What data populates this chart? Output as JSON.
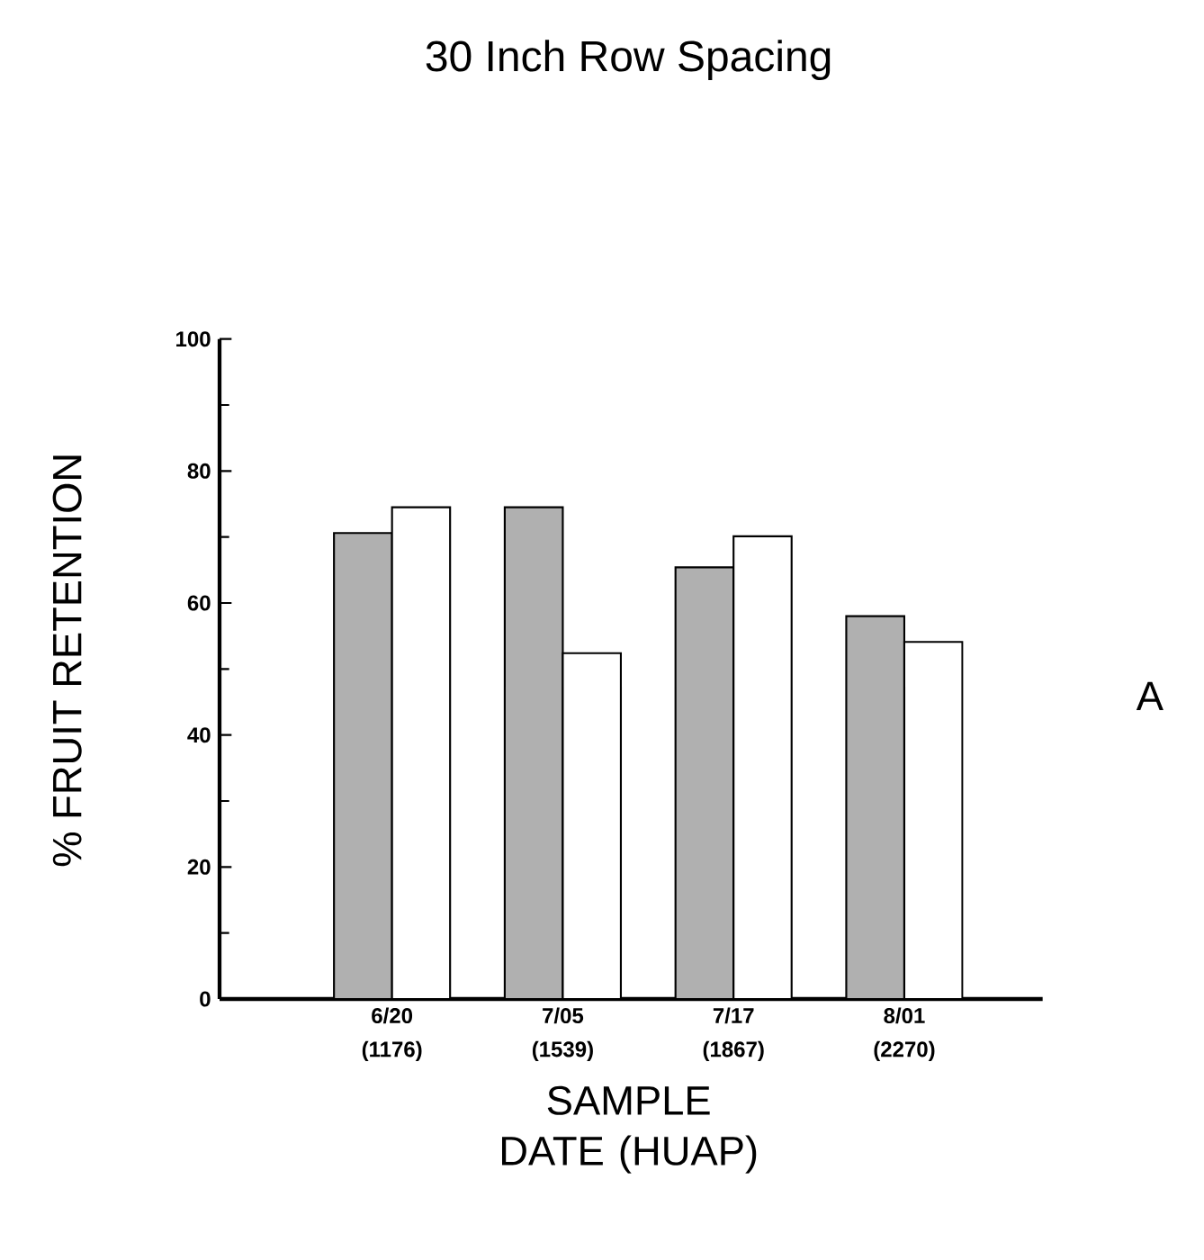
{
  "chart_data": {
    "type": "bar",
    "title": "30 Inch Row Spacing",
    "xlabel": "SAMPLE DATE (HUAP)",
    "ylabel": "% FRUIT RETENTION",
    "categories": [
      "6/20 (1176)",
      "7/05 (1539)",
      "7/17 (1867)",
      "8/01 (2270)"
    ],
    "series": [
      {
        "color": "#b0b0b0",
        "values": [
          70.6,
          74.5,
          65.4,
          58.0
        ]
      },
      {
        "color": "#ffffff",
        "values": [
          74.5,
          52.4,
          70.1,
          54.1
        ]
      }
    ],
    "ylim": [
      0,
      100
    ],
    "yticks": [
      0,
      20,
      40,
      60,
      80,
      100
    ],
    "grid": false,
    "annotations": [
      "A"
    ]
  }
}
